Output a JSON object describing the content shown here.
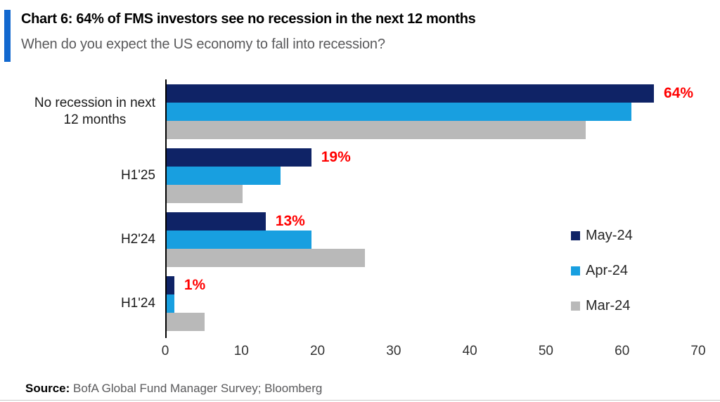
{
  "header": {
    "title": "Chart 6: 64% of FMS investors see no recession in the next 12 months",
    "subtitle": "When do you expect the US economy to fall into recession?",
    "accent_color": "#1268cf"
  },
  "chart_data": {
    "type": "bar",
    "orientation": "horizontal",
    "title": "When do you expect the US economy to fall into recession?",
    "categories": [
      "No recession in next\n12 months",
      "H1'25",
      "H2'24",
      "H1'24"
    ],
    "series": [
      {
        "name": "May-24",
        "color": "#0f2366",
        "values": [
          64,
          19,
          13,
          1
        ]
      },
      {
        "name": "Apr-24",
        "color": "#189fe0",
        "values": [
          61,
          15,
          19,
          1
        ]
      },
      {
        "name": "Mar-24",
        "color": "#b9b9b9",
        "values": [
          55,
          10,
          26,
          5
        ]
      }
    ],
    "data_labels": {
      "series": "May-24",
      "labels": [
        "64%",
        "19%",
        "13%",
        "1%"
      ],
      "color": "#ff0000"
    },
    "xlim": [
      0,
      70
    ],
    "x_ticks": [
      "0",
      "10",
      "20",
      "30",
      "40",
      "50",
      "60",
      "70"
    ],
    "grid": "off",
    "legend_position": "right"
  },
  "source": {
    "label": "Source:",
    "text": " BofA Global Fund Manager Survey; Bloomberg"
  }
}
